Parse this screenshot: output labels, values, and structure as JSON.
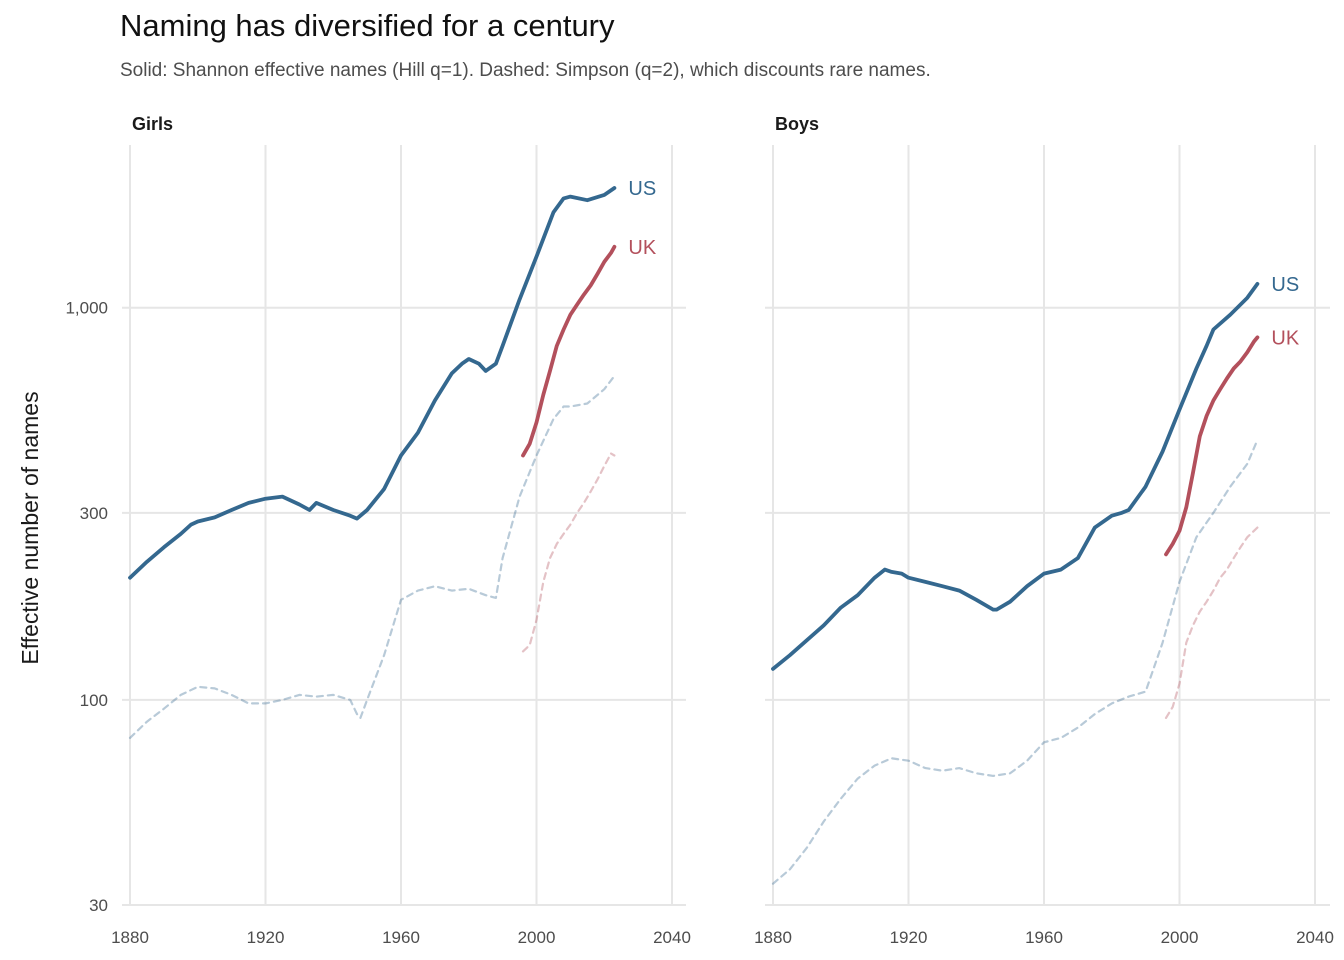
{
  "chart_data": {
    "type": "line",
    "title": "Naming has diversified for a century",
    "subtitle": "Solid: Shannon effective names (Hill q=1). Dashed: Simpson (q=2), which discounts rare names.",
    "ylabel": "Effective number of names",
    "xlabel": "",
    "y_scale": "log",
    "ylim": [
      30,
      2600
    ],
    "xlim": [
      1880,
      2043
    ],
    "x_ticks": [
      1880,
      1920,
      1960,
      2000,
      2040
    ],
    "y_ticks": [
      30,
      100,
      300,
      1000
    ],
    "y_tick_labels": [
      "30",
      "100",
      "300",
      "1,000"
    ],
    "grid": true,
    "legend": "end-of-line labels",
    "colors": {
      "US": "#34688f",
      "UK": "#b3505c"
    },
    "panels": [
      {
        "name": "Girls",
        "series": [
          {
            "name": "US",
            "measure": "Shannon",
            "style": "solid",
            "x": [
              1880,
              1885,
              1890,
              1895,
              1898,
              1900,
              1905,
              1910,
              1915,
              1920,
              1925,
              1930,
              1933,
              1935,
              1940,
              1945,
              1947,
              1950,
              1955,
              1960,
              1965,
              1970,
              1975,
              1978,
              1980,
              1983,
              1985,
              1988,
              1990,
              1995,
              2000,
              2005,
              2008,
              2010,
              2015,
              2020,
              2023
            ],
            "y": [
              205,
              225,
              245,
              265,
              280,
              285,
              292,
              305,
              318,
              326,
              330,
              315,
              305,
              318,
              305,
              295,
              290,
              305,
              345,
              420,
              480,
              580,
              680,
              720,
              740,
              720,
              690,
              720,
              800,
              1050,
              1350,
              1750,
              1900,
              1920,
              1880,
              1940,
              2020
            ]
          },
          {
            "name": "US",
            "measure": "Simpson",
            "style": "dashed",
            "x": [
              1880,
              1885,
              1890,
              1895,
              1900,
              1905,
              1910,
              1915,
              1920,
              1925,
              1930,
              1935,
              1940,
              1945,
              1947,
              1948,
              1950,
              1955,
              1960,
              1965,
              1970,
              1975,
              1980,
              1985,
              1988,
              1990,
              1995,
              2000,
              2005,
              2008,
              2010,
              2015,
              2020,
              2023
            ],
            "y": [
              80,
              88,
              95,
              103,
              108,
              107,
              103,
              98,
              98,
              100,
              103,
              102,
              103,
              100,
              92,
              90,
              100,
              130,
              180,
              190,
              195,
              190,
              192,
              185,
              182,
              230,
              330,
              420,
              520,
              560,
              560,
              570,
              620,
              670
            ]
          },
          {
            "name": "UK",
            "measure": "Shannon",
            "style": "solid",
            "x": [
              1996,
              1998,
              2000,
              2002,
              2004,
              2006,
              2008,
              2010,
              2012,
              2014,
              2016,
              2018,
              2020,
              2022,
              2023
            ],
            "y": [
              420,
              450,
              510,
              600,
              690,
              800,
              880,
              960,
              1020,
              1080,
              1140,
              1220,
              1310,
              1380,
              1430
            ]
          },
          {
            "name": "UK",
            "measure": "Simpson",
            "style": "dashed",
            "x": [
              1996,
              1998,
              2000,
              2002,
              2004,
              2006,
              2008,
              2010,
              2012,
              2014,
              2016,
              2018,
              2020,
              2022,
              2023
            ],
            "y": [
              133,
              138,
              160,
              200,
              230,
              250,
              265,
              280,
              300,
              318,
              340,
              365,
              395,
              425,
              420
            ]
          }
        ]
      },
      {
        "name": "Boys",
        "series": [
          {
            "name": "US",
            "measure": "Shannon",
            "style": "solid",
            "x": [
              1880,
              1885,
              1890,
              1895,
              1900,
              1905,
              1910,
              1913,
              1915,
              1918,
              1920,
              1925,
              1930,
              1935,
              1940,
              1945,
              1946,
              1950,
              1955,
              1960,
              1965,
              1970,
              1975,
              1980,
              1983,
              1985,
              1990,
              1995,
              2000,
              2005,
              2008,
              2010,
              2015,
              2020,
              2023
            ],
            "y": [
              120,
              130,
              142,
              155,
              172,
              185,
              205,
              215,
              212,
              210,
              205,
              200,
              195,
              190,
              180,
              170,
              170,
              178,
              195,
              210,
              215,
              230,
              275,
              295,
              300,
              305,
              350,
              430,
              550,
              700,
              800,
              880,
              960,
              1060,
              1150
            ]
          },
          {
            "name": "US",
            "measure": "Simpson",
            "style": "dashed",
            "x": [
              1880,
              1885,
              1890,
              1895,
              1900,
              1905,
              1910,
              1915,
              1920,
              1925,
              1930,
              1935,
              1940,
              1945,
              1950,
              1955,
              1960,
              1965,
              1970,
              1975,
              1980,
              1985,
              1990,
              1995,
              2000,
              2005,
              2010,
              2015,
              2020,
              2023
            ],
            "y": [
              34,
              37,
              42,
              49,
              56,
              63,
              68,
              71,
              70,
              67,
              66,
              67,
              65,
              64,
              65,
              70,
              78,
              80,
              85,
              92,
              98,
              102,
              105,
              140,
              200,
              260,
              300,
              350,
              400,
              460
            ]
          },
          {
            "name": "UK",
            "measure": "Shannon",
            "style": "solid",
            "x": [
              1996,
              1998,
              2000,
              2002,
              2004,
              2006,
              2008,
              2010,
              2012,
              2014,
              2016,
              2018,
              2020,
              2022,
              2023
            ],
            "y": [
              235,
              250,
              270,
              310,
              380,
              470,
              530,
              580,
              620,
              660,
              700,
              730,
              770,
              820,
              840
            ]
          },
          {
            "name": "UK",
            "measure": "Simpson",
            "style": "dashed",
            "x": [
              1996,
              1998,
              2000,
              2002,
              2004,
              2006,
              2008,
              2010,
              2012,
              2014,
              2016,
              2018,
              2020,
              2022,
              2023
            ],
            "y": [
              90,
              96,
              110,
              140,
              155,
              168,
              178,
              190,
              205,
              215,
              230,
              245,
              260,
              270,
              275
            ]
          }
        ]
      }
    ]
  }
}
